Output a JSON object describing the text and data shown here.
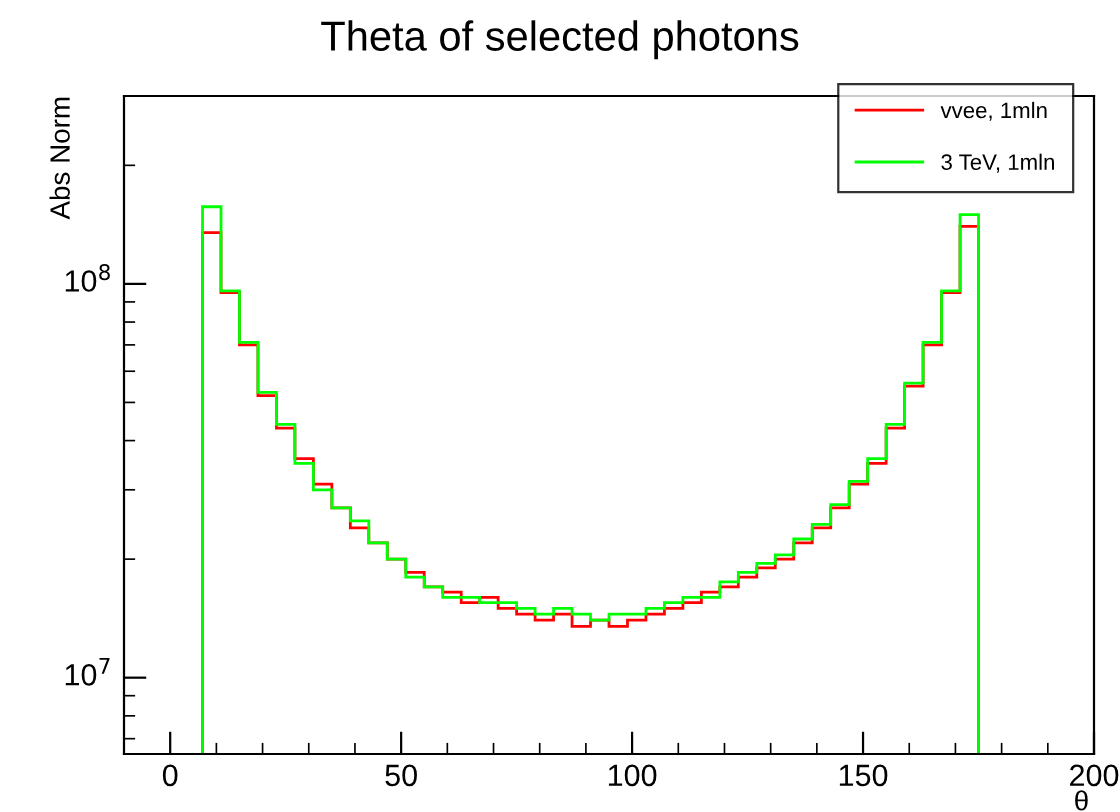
{
  "chart_data": {
    "type": "histogram",
    "title": "Theta of selected photons",
    "xlabel": "θ",
    "ylabel": "Abs Norm",
    "bins": [
      7,
      11,
      15,
      19,
      23,
      27,
      31,
      35,
      39,
      43,
      47,
      51,
      55,
      59,
      63,
      67,
      71,
      75,
      79,
      83,
      87,
      91,
      95,
      99,
      103,
      107,
      111,
      115,
      119,
      123,
      127,
      131,
      135,
      139,
      143,
      147,
      151,
      155,
      159,
      163,
      167,
      171,
      175
    ],
    "series": [
      {
        "name": "vvee, 1mln",
        "color": "#ff0000",
        "values": [
          135000000,
          95000000,
          70000000,
          52000000,
          43000000,
          36000000,
          31000000,
          27000000,
          24000000,
          22000000,
          20000000,
          18500000,
          17000000,
          16500000,
          15500000,
          16000000,
          15000000,
          14500000,
          14000000,
          14500000,
          13500000,
          14000000,
          13500000,
          14000000,
          14500000,
          15000000,
          15500000,
          16500000,
          17000000,
          18000000,
          19000000,
          20000000,
          22000000,
          24000000,
          27000000,
          31000000,
          35000000,
          43000000,
          55000000,
          70000000,
          95000000,
          140000000
        ]
      },
      {
        "name": "3 TeV, 1mln",
        "color": "#00ff00",
        "values": [
          157000000,
          96000000,
          71000000,
          53000000,
          44000000,
          35000000,
          30000000,
          27000000,
          25000000,
          22000000,
          20000000,
          18000000,
          17000000,
          16000000,
          16000000,
          15500000,
          15500000,
          15000000,
          14500000,
          15000000,
          14500000,
          14000000,
          14500000,
          14500000,
          15000000,
          15500000,
          16000000,
          16000000,
          17500000,
          18500000,
          19500000,
          20500000,
          22500000,
          24500000,
          27500000,
          31500000,
          36000000,
          44000000,
          56000000,
          71000000,
          96000000,
          150000000
        ]
      }
    ],
    "xlim": [
      -10,
      200
    ],
    "xticks": [
      0,
      50,
      100,
      150,
      200
    ],
    "ylim": [
      6400000,
      300000000
    ],
    "yticks": [
      {
        "value": 10000000,
        "label": "10$^{7}$"
      },
      {
        "value": 100000000,
        "label": "10$^{8}$"
      }
    ],
    "log": "y",
    "grid": false,
    "legend": "top right"
  }
}
